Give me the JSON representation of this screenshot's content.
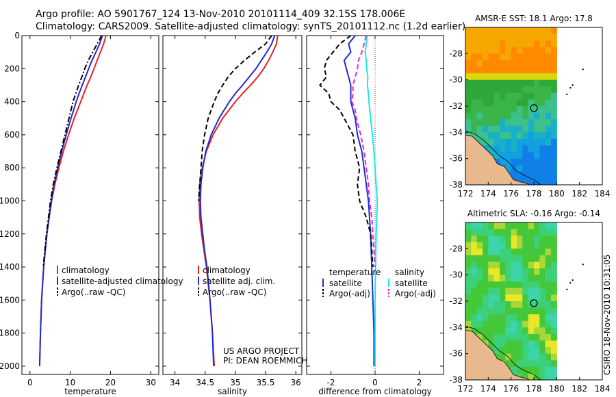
{
  "header": {
    "line1": "Argo profile: AO 5901767_124 13-Nov-2010 20101114_409 32.15S 178.006E",
    "line2": "Climatology: CARS2009. Satellite-adjusted climatology: synTS_20101112.nc (1.2d earlier)"
  },
  "footer_stamp": "CSIRO 18-Nov-2010 10:31:05",
  "project_credit": {
    "line1": "US ARGO PROJECT",
    "line2": "PI: DEAN ROEMMICH"
  },
  "colors": {
    "climatology": "#e8201c",
    "satellite": "#1f2ad6",
    "argo": "#000000",
    "sal_satellite": "#19e8e8",
    "sal_argo": "#e024e0"
  },
  "chart_data": [
    {
      "type": "line",
      "panel": "temperature",
      "xlabel": "temperature",
      "ylabel": "",
      "xlim": [
        -2,
        32
      ],
      "ylim": [
        2050,
        0
      ],
      "xticks": [
        0,
        10,
        20,
        30
      ],
      "yticks": [
        0,
        200,
        400,
        600,
        800,
        1000,
        1200,
        1400,
        1600,
        1800,
        2000
      ],
      "legend": [
        "climatology",
        "satellite-adjusted climatology",
        "Argo(..raw -QC)"
      ],
      "series": [
        {
          "name": "climatology",
          "style": "solid",
          "color_key": "climatology",
          "depth": [
            0,
            50,
            100,
            150,
            200,
            250,
            300,
            350,
            400,
            500,
            600,
            700,
            800,
            900,
            1000,
            1200,
            1400,
            1600,
            1800,
            2000
          ],
          "values": [
            18.9,
            18.3,
            17.5,
            16.7,
            15.9,
            15.1,
            14.2,
            13.4,
            12.6,
            11.0,
            9.6,
            8.3,
            7.2,
            6.2,
            5.4,
            4.2,
            3.4,
            2.9,
            2.6,
            2.4
          ]
        },
        {
          "name": "satellite-adjusted climatology",
          "style": "solid",
          "color_key": "satellite",
          "depth": [
            0,
            50,
            100,
            150,
            200,
            250,
            300,
            350,
            400,
            500,
            600,
            700,
            800,
            900,
            1000,
            1200,
            1400,
            1600,
            1800,
            2000
          ],
          "values": [
            18.0,
            17.3,
            16.4,
            15.4,
            14.6,
            13.8,
            13.0,
            12.2,
            11.5,
            10.2,
            9.0,
            7.9,
            6.9,
            6.0,
            5.3,
            4.2,
            3.4,
            2.9,
            2.6,
            2.4
          ]
        },
        {
          "name": "Argo(..raw -QC)",
          "style": "dashdot",
          "color_key": "argo",
          "depth": [
            0,
            50,
            100,
            150,
            200,
            250,
            300,
            350,
            400,
            500,
            600,
            700,
            800,
            900,
            1000,
            1200,
            1400
          ],
          "values": [
            17.8,
            16.7,
            15.6,
            14.5,
            13.6,
            12.9,
            12.1,
            11.4,
            10.7,
            9.7,
            8.7,
            7.7,
            6.7,
            5.8,
            5.1,
            4.1,
            3.3
          ]
        }
      ]
    },
    {
      "type": "line",
      "panel": "salinity",
      "xlabel": "salinity",
      "xlim": [
        33.8,
        36.1
      ],
      "ylim": [
        2050,
        0
      ],
      "xticks": [
        34,
        34.5,
        35,
        35.5,
        36
      ],
      "xtick_labels": [
        "34",
        "34.5",
        "35",
        "35.5",
        "36"
      ],
      "legend": [
        "climatology",
        "satellite adj. clim.",
        "Argo(..raw -QC)"
      ],
      "series": [
        {
          "name": "climatology",
          "style": "solid",
          "color_key": "climatology",
          "depth": [
            0,
            50,
            100,
            150,
            200,
            250,
            300,
            350,
            400,
            500,
            600,
            700,
            800,
            900,
            1000,
            1100,
            1200,
            1300,
            1400,
            1600,
            1800,
            2000
          ],
          "values": [
            35.7,
            35.68,
            35.62,
            35.55,
            35.47,
            35.37,
            35.25,
            35.12,
            35.0,
            34.79,
            34.63,
            34.52,
            34.45,
            34.41,
            34.4,
            34.41,
            34.44,
            34.48,
            34.52,
            34.58,
            34.62,
            34.65
          ]
        },
        {
          "name": "satellite adj. clim.",
          "style": "solid",
          "color_key": "satellite",
          "depth": [
            0,
            50,
            100,
            150,
            200,
            250,
            300,
            350,
            400,
            500,
            600,
            700,
            800,
            900,
            1000,
            1100,
            1200,
            1300,
            1400,
            1600,
            1800,
            2000
          ],
          "values": [
            35.65,
            35.6,
            35.52,
            35.43,
            35.34,
            35.23,
            35.12,
            35.0,
            34.9,
            34.73,
            34.6,
            34.51,
            34.46,
            34.43,
            34.42,
            34.43,
            34.46,
            34.49,
            34.53,
            34.58,
            34.62,
            34.64
          ]
        },
        {
          "name": "Argo(..raw -QC)",
          "style": "dashed",
          "color_key": "argo",
          "depth": [
            0,
            50,
            100,
            150,
            200,
            250,
            300,
            350,
            400,
            500,
            600,
            700,
            800,
            900,
            1000
          ],
          "values": [
            35.6,
            35.5,
            35.32,
            35.15,
            35.0,
            34.88,
            34.79,
            34.71,
            34.65,
            34.55,
            34.49,
            34.45,
            34.43,
            34.41,
            34.39
          ]
        }
      ]
    },
    {
      "type": "line",
      "panel": "difference",
      "xlabel": "difference from climatology",
      "xlim": [
        -3.1,
        3.1
      ],
      "ylim": [
        2050,
        0
      ],
      "xticks": [
        -2,
        0,
        2
      ],
      "legend_groups": [
        {
          "title": "temperature",
          "items": [
            "satellite",
            "Argo(-adj)"
          ]
        },
        {
          "title": "salinity",
          "items": [
            "satellite",
            "Argo(-adj)"
          ]
        }
      ],
      "series": [
        {
          "name": "temperature satellite",
          "style": "solid",
          "color_key": "satellite",
          "depth": [
            0,
            50,
            100,
            150,
            200,
            250,
            300,
            400,
            500,
            600,
            700,
            800,
            900,
            1000,
            1200,
            1400,
            1600,
            1800,
            2000
          ],
          "values": [
            -0.9,
            -1.2,
            -1.1,
            -1.4,
            -1.3,
            -1.2,
            -1.1,
            -1.1,
            -0.9,
            -0.8,
            -0.6,
            -0.5,
            -0.4,
            -0.3,
            -0.2,
            -0.15,
            -0.1,
            -0.05,
            -0.05
          ]
        },
        {
          "name": "temperature Argo(-adj)",
          "style": "dashed",
          "color_key": "argo",
          "depth": [
            0,
            50,
            100,
            150,
            200,
            250,
            300,
            350,
            400,
            450,
            500,
            600,
            700,
            800,
            900,
            1000,
            1100,
            1200,
            1300,
            1400
          ],
          "values": [
            -1.1,
            -1.6,
            -1.9,
            -2.2,
            -2.3,
            -2.2,
            -2.5,
            -2.1,
            -2.0,
            -1.6,
            -1.4,
            -1.0,
            -0.9,
            -0.7,
            -0.8,
            -0.7,
            -0.4,
            -0.2,
            -0.15,
            -0.1
          ]
        },
        {
          "name": "salinity satellite",
          "style": "solid",
          "color_key": "sal_satellite",
          "depth": [
            0,
            50,
            100,
            150,
            200,
            250,
            300,
            350,
            400,
            500,
            600,
            700,
            800,
            900,
            1000,
            1200,
            1400,
            1600,
            1800,
            2000
          ],
          "values": [
            -0.35,
            -0.4,
            -0.45,
            -0.4,
            -0.38,
            -0.33,
            -0.35,
            -0.3,
            -0.28,
            -0.2,
            -0.12,
            -0.05,
            0.0,
            0.05,
            0.1,
            0.05,
            0.02,
            0.0,
            0.0,
            0.0
          ]
        },
        {
          "name": "salinity Argo(-adj)",
          "style": "dashed",
          "color_key": "sal_argo",
          "depth": [
            0,
            50,
            100,
            150,
            200,
            250,
            300,
            350,
            400,
            450,
            500,
            600,
            700,
            800,
            900,
            1000,
            1100,
            1200,
            1300,
            1400
          ],
          "values": [
            -0.4,
            -0.5,
            -0.6,
            -0.75,
            -0.8,
            -0.9,
            -1.0,
            -1.0,
            -1.05,
            -0.9,
            -0.85,
            -0.65,
            -0.5,
            -0.4,
            -0.3,
            -0.25,
            -0.15,
            -0.1,
            -0.05,
            0.0
          ]
        }
      ]
    },
    {
      "type": "heatmap",
      "panel": "sst_map",
      "title": "AMSR-E SST: 18.1 Argo: 17.8",
      "xlim": [
        172,
        184
      ],
      "ylim": [
        -38,
        -26
      ],
      "xticks": [
        172,
        174,
        176,
        178,
        180,
        182,
        184
      ],
      "yticks": [
        -28,
        -30,
        -32,
        -34,
        -36,
        -38
      ],
      "float_position": {
        "lon": 178.006,
        "lat": -32.15
      }
    },
    {
      "type": "heatmap",
      "panel": "sla_map",
      "title": "Altimetric SLA: -0.16 Argo: -0.14",
      "xlim": [
        172,
        184
      ],
      "ylim": [
        -38,
        -26
      ],
      "xticks": [
        172,
        174,
        176,
        178,
        180,
        182,
        184
      ],
      "yticks": [
        -28,
        -30,
        -32,
        -34,
        -36,
        -38
      ],
      "float_position": {
        "lon": 178.006,
        "lat": -32.15
      }
    }
  ]
}
